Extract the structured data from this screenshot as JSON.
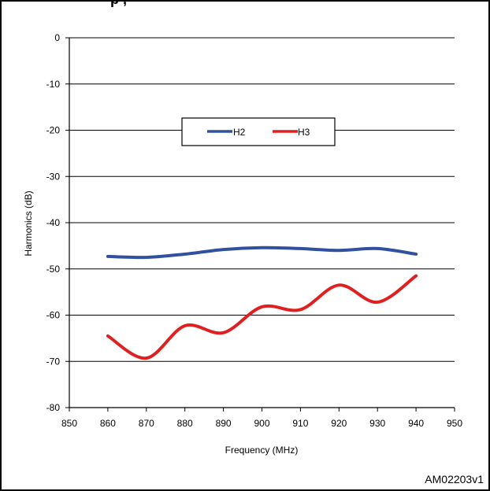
{
  "header": {
    "text": "p     ,   "
  },
  "figure_id": "AM02203v1",
  "colors": {
    "h2": "#3050a0",
    "h3": "#e02020",
    "axis": "#000000",
    "grid": "#000000"
  },
  "chart_data": {
    "type": "line",
    "title": "",
    "xlabel": "Frequency  (MHz)",
    "ylabel": "Harmonics (dB)",
    "xlim": [
      850,
      950
    ],
    "ylim": [
      -80,
      0
    ],
    "xticks": [
      850,
      860,
      870,
      880,
      890,
      900,
      910,
      920,
      930,
      940,
      950
    ],
    "yticks": [
      0,
      -10,
      -20,
      -30,
      -40,
      -50,
      -60,
      -70,
      -80
    ],
    "grid": "horizontal",
    "legend": "upper-center",
    "series": [
      {
        "name": "H2",
        "x": [
          860,
          870,
          880,
          890,
          900,
          910,
          920,
          930,
          940
        ],
        "y": [
          -47.3,
          -47.5,
          -46.8,
          -45.8,
          -45.4,
          -45.6,
          -46.0,
          -45.6,
          -46.8
        ]
      },
      {
        "name": "H3",
        "x": [
          860,
          870,
          880,
          890,
          900,
          910,
          920,
          930,
          940
        ],
        "y": [
          -64.5,
          -69.3,
          -62.3,
          -63.8,
          -58.2,
          -58.8,
          -53.5,
          -57.2,
          -51.5
        ]
      }
    ]
  }
}
